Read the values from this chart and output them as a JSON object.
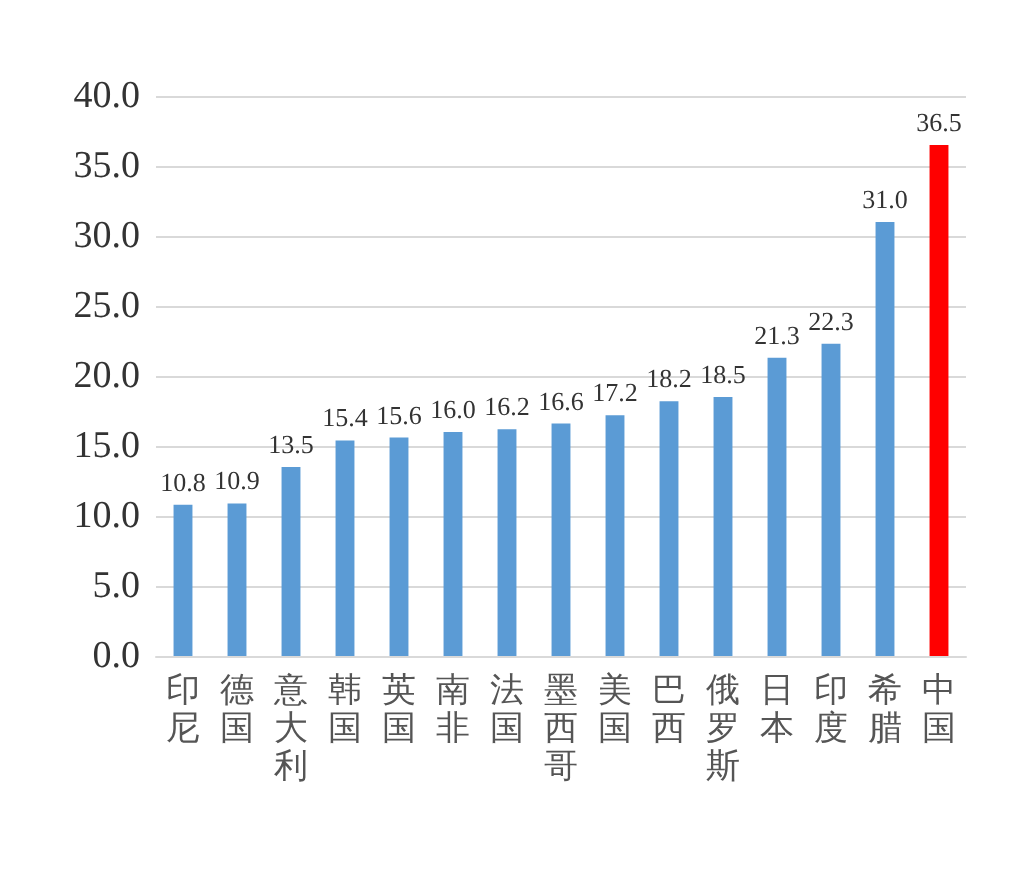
{
  "chart_data": {
    "type": "bar",
    "categories": [
      "印尼",
      "德国",
      "意大利",
      "韩国",
      "英国",
      "南非",
      "法国",
      "墨西哥",
      "美国",
      "巴西",
      "俄罗斯",
      "日本",
      "印度",
      "希腊",
      "中国"
    ],
    "values": [
      10.8,
      10.9,
      13.5,
      15.4,
      15.6,
      16.0,
      16.2,
      16.6,
      17.2,
      18.2,
      18.5,
      21.3,
      22.3,
      31.0,
      36.5
    ],
    "value_labels": [
      "10.8",
      "10.9",
      "13.5",
      "15.4",
      "15.6",
      "16.0",
      "16.2",
      "16.6",
      "17.2",
      "18.2",
      "18.5",
      "21.3",
      "22.3",
      "31.0",
      "36.5"
    ],
    "colors": [
      "#5b9bd5",
      "#5b9bd5",
      "#5b9bd5",
      "#5b9bd5",
      "#5b9bd5",
      "#5b9bd5",
      "#5b9bd5",
      "#5b9bd5",
      "#5b9bd5",
      "#5b9bd5",
      "#5b9bd5",
      "#5b9bd5",
      "#5b9bd5",
      "#5b9bd5",
      "#ff0000"
    ],
    "ylim": [
      0,
      40
    ],
    "yticks": [
      {
        "value": 0,
        "label": "0.0"
      },
      {
        "value": 5,
        "label": "5.0"
      },
      {
        "value": 10,
        "label": "10.0"
      },
      {
        "value": 15,
        "label": "15.0"
      },
      {
        "value": 20,
        "label": "20.0"
      },
      {
        "value": 25,
        "label": "25.0"
      },
      {
        "value": 30,
        "label": "30.0"
      },
      {
        "value": 35,
        "label": "35.0"
      },
      {
        "value": 40,
        "label": "40.0"
      }
    ],
    "grid": "y"
  }
}
